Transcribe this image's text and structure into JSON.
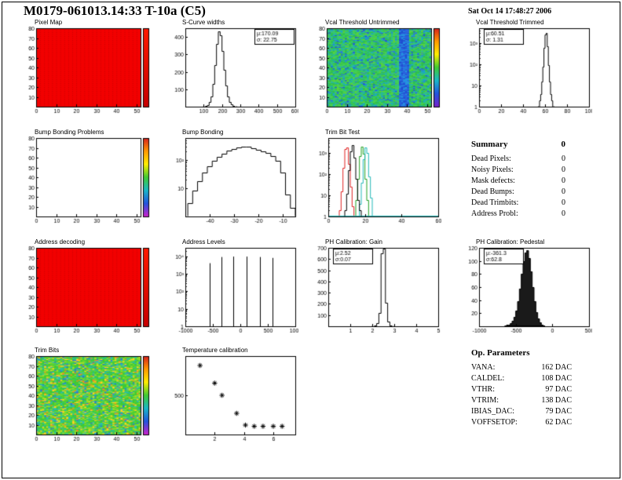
{
  "header": {
    "title": "M0179-061013.14:33 T-10a (C5)",
    "datetime": "Sat Oct 14 17:48:27 2006"
  },
  "summary": {
    "heading": "Summary",
    "total": "0",
    "rows": [
      [
        "Dead Pixels:",
        "0"
      ],
      [
        "Noisy Pixels:",
        "0"
      ],
      [
        "Mask defects:",
        "0"
      ],
      [
        "Dead Bumps:",
        "0"
      ],
      [
        "Dead Trimbits:",
        "0"
      ],
      [
        "Address Probl:",
        "0"
      ]
    ]
  },
  "op_parameters": {
    "heading": "Op. Parameters",
    "rows": [
      [
        "VANA:",
        "162 DAC"
      ],
      [
        "CALDEL:",
        "108 DAC"
      ],
      [
        "VTHR:",
        "97 DAC"
      ],
      [
        "VTRIM:",
        "138 DAC"
      ],
      [
        "IBIAS_DAC:",
        "79 DAC"
      ],
      [
        "VOFFSETOP:",
        "62 DAC"
      ]
    ]
  },
  "chart_data": [
    {
      "id": "pixel-map",
      "title": "Pixel Map",
      "type": "heatmap",
      "x": {
        "min": 0,
        "max": 52,
        "ticks": [
          0,
          10,
          20,
          30,
          40,
          50
        ]
      },
      "y": {
        "min": 0,
        "max": 80,
        "ticks": [
          10,
          20,
          30,
          40,
          50,
          60,
          70,
          80
        ]
      },
      "nx": 52,
      "ny": 80,
      "fill": "solid",
      "color": "#f20000",
      "dot_color": "#c00000",
      "colorbar": [
        "#ff1a00",
        "#c80000"
      ]
    },
    {
      "id": "scurve-widths",
      "title": "S-Curve widths",
      "type": "hist",
      "x": {
        "min": 0,
        "max": 600,
        "ticks": [
          100,
          200,
          300,
          400,
          500,
          600
        ]
      },
      "y": {
        "min": 0,
        "max": 450,
        "ticks": [
          100,
          200,
          300,
          400
        ]
      },
      "bins": {
        "x0": 100,
        "w": 10,
        "values": [
          2,
          4,
          10,
          25,
          60,
          130,
          240,
          360,
          430,
          410,
          320,
          210,
          120,
          60,
          28,
          12,
          5,
          2
        ]
      },
      "stats": {
        "pos": "right",
        "lines": [
          "μ:170.09",
          "σ: 22.75"
        ]
      }
    },
    {
      "id": "vcal-threshold-untrimmed",
      "title": "Vcal Threshold Untrimmed",
      "type": "heatmap",
      "x": {
        "min": 0,
        "max": 52,
        "ticks": [
          0,
          10,
          20,
          30,
          40,
          50
        ]
      },
      "y": {
        "min": 0,
        "max": 80,
        "ticks": [
          10,
          20,
          30,
          40,
          50,
          60,
          70,
          80
        ]
      },
      "nx": 52,
      "ny": 80,
      "fill": "noise",
      "seed": 7,
      "palette": [
        [
          "#2fbf4f",
          0.28
        ],
        [
          "#3ecf57",
          0.22
        ],
        [
          "#27b89a",
          0.16
        ],
        [
          "#59d13e",
          0.12
        ],
        [
          "#19a7c8",
          0.1
        ],
        [
          "#2a7fd4",
          0.07
        ],
        [
          "#2255dd",
          0.05
        ]
      ],
      "band": {
        "x0": 36,
        "x1": 41,
        "colors": [
          "#2a62dd",
          "#2491e0",
          "#1f4fd0"
        ]
      },
      "colorbar": [
        "#d62020",
        "#ff9900",
        "#ffee00",
        "#41cc33",
        "#1ab8c8",
        "#2255dd",
        "#7722cc"
      ]
    },
    {
      "id": "vcal-threshold-trimmed",
      "title": "Vcal Threshold Trimmed",
      "type": "hist",
      "log": true,
      "x": {
        "min": 0,
        "max": 100,
        "ticks": [
          0,
          20,
          40,
          60,
          80,
          100
        ]
      },
      "y": {
        "min": 1,
        "max": 5000,
        "tick_exps": [
          0,
          1,
          2,
          3
        ]
      },
      "bins": {
        "x0": 54,
        "w": 1,
        "values": [
          1,
          2,
          4,
          15,
          80,
          600,
          2600,
          2900,
          700,
          90,
          15,
          4,
          2,
          1
        ]
      },
      "stats": {
        "pos": "left",
        "lines": [
          "μ:60.51",
          "σ: 1.31"
        ]
      }
    },
    {
      "id": "bump-bonding-problems",
      "title": "Bump Bonding Problems",
      "type": "heatmap",
      "x": {
        "min": 0,
        "max": 52,
        "ticks": [
          0,
          10,
          20,
          30,
          40,
          50
        ]
      },
      "y": {
        "min": 0,
        "max": 80,
        "ticks": [
          10,
          20,
          30,
          40,
          50,
          60,
          70,
          80
        ]
      },
      "nx": 52,
      "ny": 80,
      "fill": "empty",
      "colorbar": [
        "#d62020",
        "#ff9900",
        "#ffee00",
        "#41cc33",
        "#1ab8c8",
        "#2255dd",
        "#cc22cc"
      ]
    },
    {
      "id": "bump-bonding",
      "title": "Bump Bonding",
      "type": "hist",
      "log": true,
      "x": {
        "min": -50,
        "max": -5,
        "ticks": [
          -40,
          -30,
          -20,
          -10
        ]
      },
      "y": {
        "min": 1,
        "max": 600,
        "tick_exps": [
          1,
          2
        ]
      },
      "bins": {
        "x0": -49,
        "w": 2,
        "values": [
          3,
          8,
          18,
          35,
          60,
          95,
          130,
          170,
          210,
          250,
          285,
          300,
          290,
          265,
          235,
          205,
          175,
          140,
          95,
          35,
          6,
          2
        ]
      }
    },
    {
      "id": "trim-bit-test",
      "title": "Trim Bit Test",
      "type": "multihist",
      "log": true,
      "x": {
        "min": 0,
        "max": 60,
        "ticks": [
          0,
          20,
          40,
          60
        ]
      },
      "y": {
        "min": 1,
        "max": 5000,
        "tick_exps": [
          0,
          1,
          2,
          3
        ]
      },
      "series": [
        {
          "color": "#e02020",
          "x0": 6,
          "w": 1,
          "values": [
            2,
            15,
            200,
            1500,
            1800,
            300,
            25,
            3
          ]
        },
        {
          "color": "#20a020",
          "x0": 14,
          "w": 1,
          "values": [
            1,
            6,
            60,
            700,
            2000,
            900,
            60,
            6,
            1
          ]
        },
        {
          "color": "#20b8b8",
          "x0": 16,
          "w": 1,
          "values": [
            1,
            4,
            40,
            500,
            1800,
            1000,
            80,
            8,
            1
          ],
          "baseline_to": 60
        },
        {
          "color": "#000000",
          "x0": 9,
          "w": 1,
          "values": [
            2,
            12,
            150,
            1200,
            2300,
            600,
            60,
            6,
            2
          ]
        }
      ]
    },
    {
      "id": "address-decoding",
      "title": "Address decoding",
      "type": "heatmap",
      "x": {
        "min": 0,
        "max": 52,
        "ticks": [
          0,
          10,
          20,
          30,
          40,
          50
        ]
      },
      "y": {
        "min": 0,
        "max": 80,
        "ticks": [
          10,
          20,
          30,
          40,
          50,
          60,
          70,
          80
        ]
      },
      "nx": 52,
      "ny": 80,
      "fill": "solid",
      "color": "#f20000",
      "dot_color": "#c00000",
      "colorbar": [
        "#ff1a00",
        "#c80000"
      ]
    },
    {
      "id": "address-levels",
      "title": "Address Levels",
      "type": "spikes",
      "log": true,
      "x": {
        "min": -1000,
        "max": 1000,
        "ticks": [
          -1000,
          -500,
          0,
          500,
          1000
        ]
      },
      "y": {
        "min": 1,
        "max": 30000,
        "tick_exps": [
          0,
          1,
          2,
          3,
          4
        ]
      },
      "spikes": [
        [
          -560,
          4000
        ],
        [
          -340,
          9000
        ],
        [
          -130,
          9500
        ],
        [
          110,
          9500
        ],
        [
          350,
          9000
        ],
        [
          580,
          8000
        ]
      ]
    },
    {
      "id": "ph-calibration-gain",
      "title": "PH Calibration: Gain",
      "type": "hist",
      "x": {
        "min": 0,
        "max": 5,
        "ticks": [
          1,
          2,
          3,
          4,
          5
        ]
      },
      "y": {
        "min": 0,
        "max": 700,
        "ticks": [
          100,
          200,
          300,
          400,
          500,
          600,
          700
        ]
      },
      "bins": {
        "x0": 2.0,
        "w": 0.1,
        "values": [
          2,
          6,
          25,
          120,
          650,
          690,
          210,
          40,
          10,
          3
        ]
      },
      "stats": {
        "pos": "left",
        "lines": [
          "μ:2.52",
          "σ:0.07"
        ]
      }
    },
    {
      "id": "ph-calibration-pedestal",
      "title": "PH Calibration: Pedestal",
      "type": "hist",
      "fill_color": "#1a1a1a",
      "x": {
        "min": -1000,
        "max": 500,
        "ticks": [
          -1000,
          -500,
          0,
          500
        ]
      },
      "y": {
        "min": 0,
        "max": 120,
        "ticks": [
          20,
          40,
          60,
          80,
          100,
          120
        ]
      },
      "bins": {
        "x0": -650,
        "w": 25,
        "values": [
          1,
          2,
          3,
          5,
          8,
          14,
          24,
          38,
          58,
          80,
          100,
          113,
          116,
          104,
          84,
          60,
          38,
          22,
          12,
          6,
          3,
          1
        ]
      },
      "stats": {
        "pos": "left",
        "lines": [
          "μ:-361.3",
          "σ:62.8"
        ]
      }
    },
    {
      "id": "trim-bits",
      "title": "Trim Bits",
      "type": "heatmap",
      "x": {
        "min": 0,
        "max": 52,
        "ticks": [
          0,
          10,
          20,
          30,
          40,
          50
        ]
      },
      "y": {
        "min": 0,
        "max": 80,
        "ticks": [
          10,
          20,
          30,
          40,
          50,
          60,
          70,
          80
        ]
      },
      "nx": 52,
      "ny": 80,
      "fill": "noise",
      "seed": 13,
      "palette": [
        [
          "#3fca35",
          0.26
        ],
        [
          "#63d62e",
          0.2
        ],
        [
          "#9bdd2a",
          0.14
        ],
        [
          "#2cc47f",
          0.12
        ],
        [
          "#27b9c0",
          0.1
        ],
        [
          "#ffd21f",
          0.08
        ],
        [
          "#f28c1e",
          0.05
        ],
        [
          "#2b78d8",
          0.05
        ]
      ],
      "colorbar": [
        "#d62020",
        "#ff9900",
        "#ffee00",
        "#41cc33",
        "#1ab8c8",
        "#2255dd",
        "#cc22cc"
      ]
    },
    {
      "id": "temperature-calibration",
      "title": "Temperature calibration",
      "type": "scatter",
      "x": {
        "min": 0,
        "max": 7.5,
        "ticks": [
          2,
          4,
          6
        ]
      },
      "y": {
        "min": 0,
        "max": 1000,
        "ticks": [
          500
        ]
      },
      "points": [
        [
          1,
          880
        ],
        [
          2,
          655
        ],
        [
          2.5,
          500
        ],
        [
          3.5,
          270
        ],
        [
          4.1,
          120
        ],
        [
          4.7,
          105
        ],
        [
          5.3,
          105
        ],
        [
          6,
          105
        ],
        [
          6.6,
          105
        ]
      ]
    }
  ]
}
